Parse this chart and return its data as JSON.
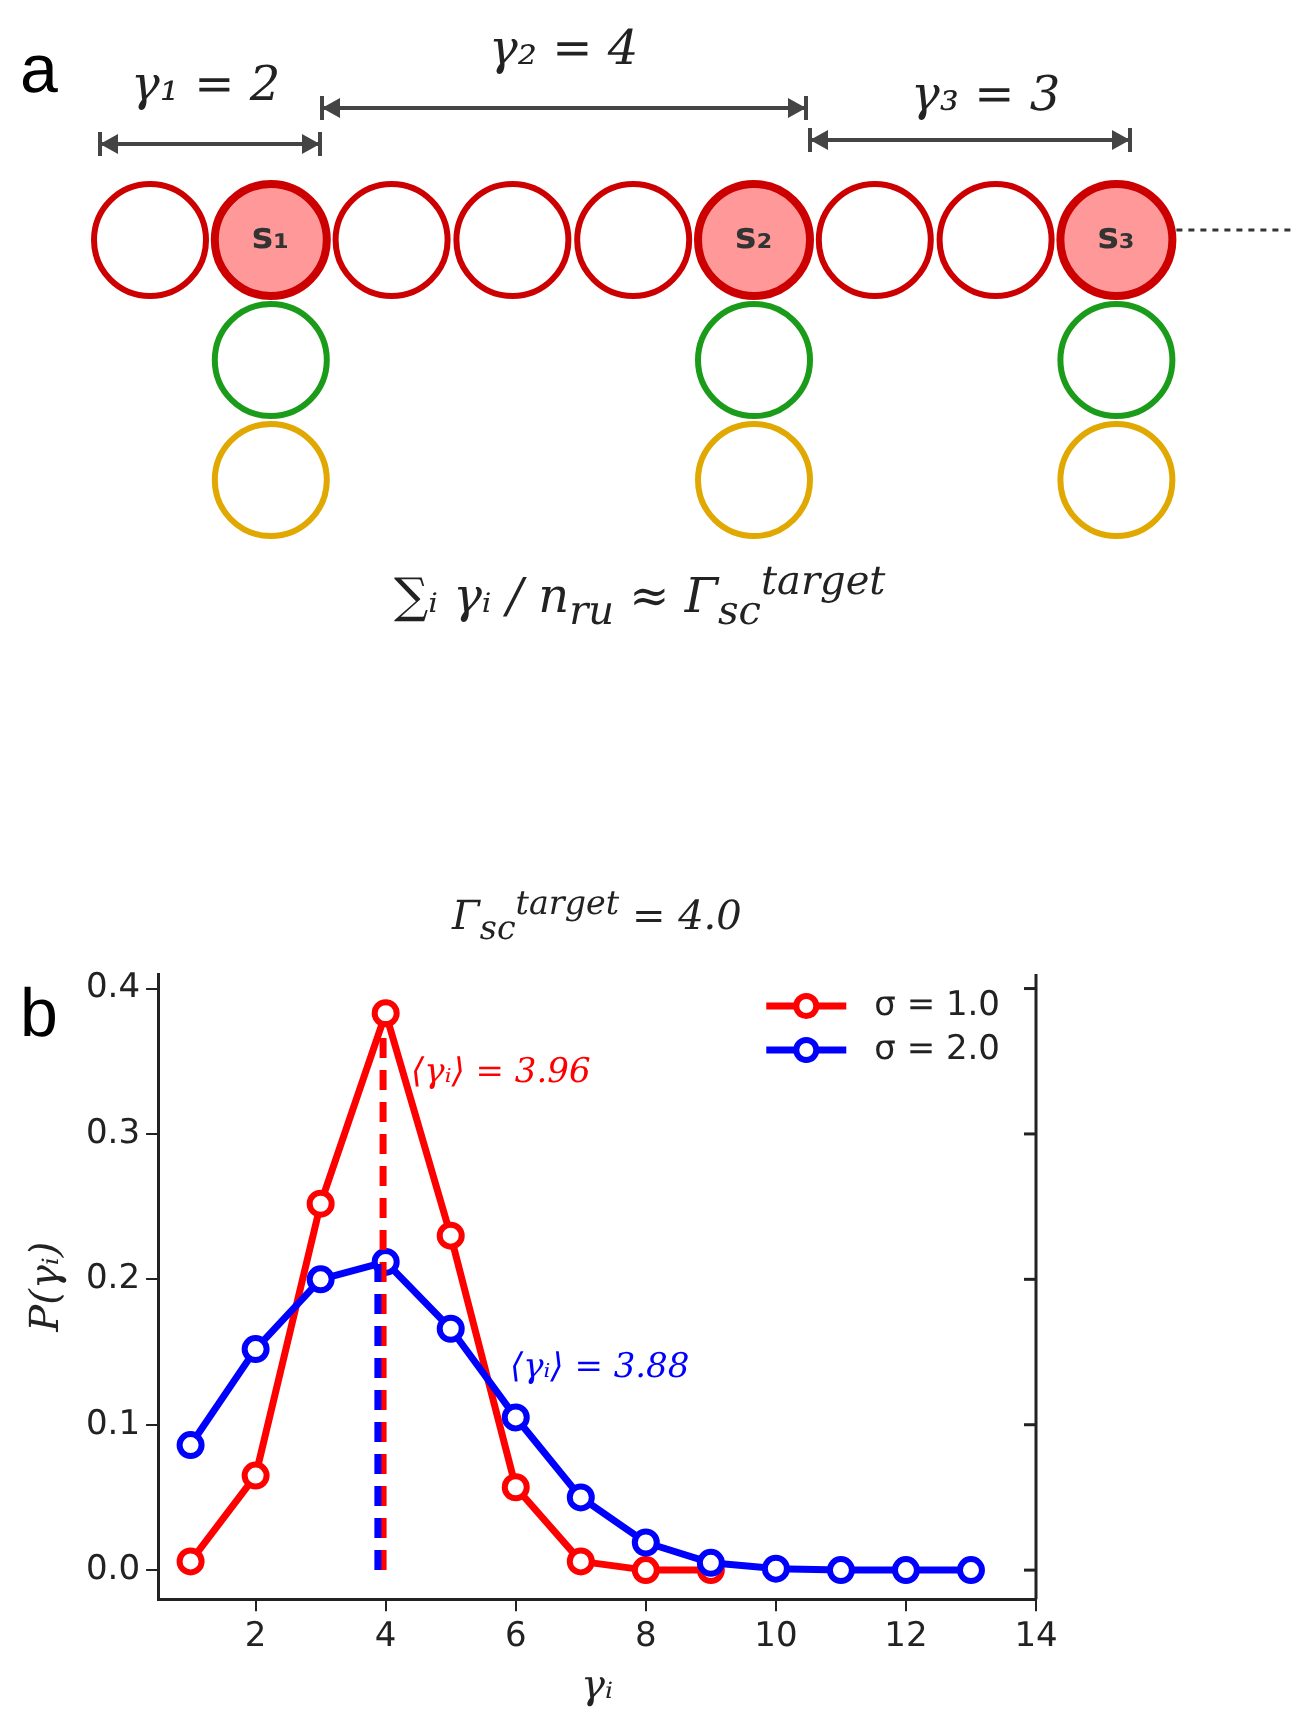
{
  "chart_data": {
    "type": "line",
    "title": "Γ$_{sc}$$^{target}$ = 4.0",
    "xlabel": "γᵢ",
    "ylabel": "P(γᵢ)",
    "series": [
      {
        "name": "σ = 1.0",
        "color": "#ff0000",
        "x": [
          1,
          2,
          3,
          4,
          5,
          6,
          7,
          8,
          9
        ],
        "values": [
          0.006,
          0.065,
          0.252,
          0.383,
          0.23,
          0.057,
          0.006,
          0.0,
          0.0
        ]
      },
      {
        "name": "σ = 2.0",
        "color": "#0000ff",
        "x": [
          1,
          2,
          3,
          4,
          5,
          6,
          7,
          8,
          9,
          10,
          11,
          12,
          13
        ],
        "values": [
          0.086,
          0.152,
          0.2,
          0.212,
          0.166,
          0.105,
          0.05,
          0.019,
          0.005,
          0.001,
          0.0,
          0.0,
          0.0
        ]
      }
    ],
    "xlim": [
      0.5,
      14
    ],
    "xticks": [
      2,
      4,
      6,
      8,
      10,
      12,
      14
    ],
    "ylim": [
      -0.02,
      0.41
    ],
    "yticks": [
      {
        "value": 0,
        "label": "0.0"
      },
      0.1,
      0.2,
      0.3,
      0.4
    ],
    "ref_lines": [
      {
        "axis": "x",
        "value": 3.96,
        "label": "⟨γᵢ⟩ = 3.96",
        "color": "#ff0000",
        "line_style": "dashed"
      },
      {
        "axis": "x",
        "value": 3.88,
        "label": "⟨γᵢ⟩ = 3.88",
        "color": "#0000ff",
        "line_style": "dashed"
      }
    ],
    "annotations": [
      "a",
      "γ₁ = 2",
      "γ₂ = 4",
      "γ₃ = 3",
      "s₁",
      "s₂",
      "s₃",
      "∑ᵢ γᵢ / n$_{ru}$ ≈ Γ$_{sc}$$^{target}$",
      "b"
    ],
    "legend": "top right",
    "marker": "circle",
    "line_style": "solid",
    "grid": false
  }
}
